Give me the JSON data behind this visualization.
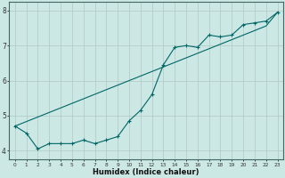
{
  "xlabel": "Humidex (Indice chaleur)",
  "background_color": "#cce8e4",
  "grid_color": "#b0c8c4",
  "line_color": "#006666",
  "xlim": [
    -0.5,
    23.5
  ],
  "ylim": [
    3.75,
    8.25
  ],
  "series1_x": [
    0,
    1,
    2,
    3,
    4,
    5,
    6,
    7,
    8,
    9,
    10,
    11,
    12,
    13,
    14,
    15,
    16,
    17,
    18,
    19,
    20,
    21,
    22,
    23
  ],
  "series1_y": [
    4.7,
    4.5,
    4.05,
    4.2,
    4.2,
    4.2,
    4.3,
    4.2,
    4.3,
    4.4,
    4.85,
    5.15,
    5.6,
    6.45,
    6.95,
    7.0,
    6.95,
    7.3,
    7.25,
    7.3,
    7.6,
    7.65,
    7.7,
    7.95
  ],
  "series2_x": [
    0,
    1,
    2,
    3,
    4,
    5,
    6,
    7,
    8,
    9,
    10,
    11,
    12,
    13,
    14,
    15,
    16,
    17,
    18,
    19,
    20,
    21,
    22,
    23
  ],
  "series2_y": [
    4.7,
    4.83,
    4.96,
    5.09,
    5.22,
    5.35,
    5.48,
    5.61,
    5.74,
    5.87,
    6.0,
    6.13,
    6.26,
    6.39,
    6.52,
    6.65,
    6.78,
    6.91,
    7.04,
    7.17,
    7.3,
    7.43,
    7.56,
    7.95
  ],
  "yticks": [
    4,
    5,
    6,
    7,
    8
  ],
  "xticks": [
    0,
    1,
    2,
    3,
    4,
    5,
    6,
    7,
    8,
    9,
    10,
    11,
    12,
    13,
    14,
    15,
    16,
    17,
    18,
    19,
    20,
    21,
    22,
    23
  ]
}
